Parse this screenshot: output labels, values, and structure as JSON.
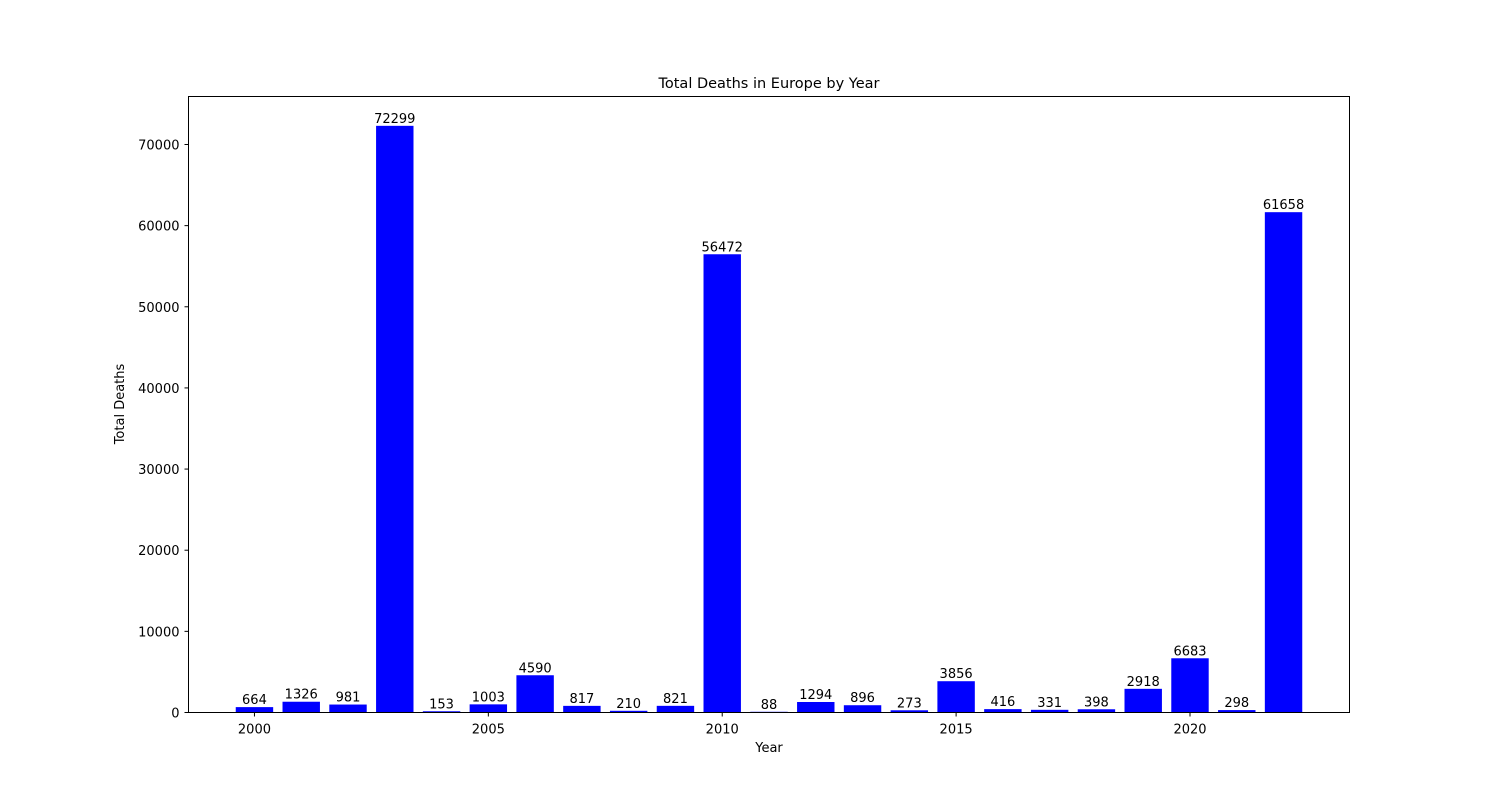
{
  "chart_data": {
    "type": "bar",
    "title": "Total Deaths in Europe by Year",
    "xlabel": "Year",
    "ylabel": "Total Deaths",
    "x": [
      2000,
      2001,
      2002,
      2003,
      2004,
      2005,
      2006,
      2007,
      2008,
      2009,
      2010,
      2011,
      2012,
      2013,
      2014,
      2015,
      2016,
      2017,
      2018,
      2019,
      2020,
      2021,
      2022
    ],
    "values": [
      664,
      1326,
      981,
      72299,
      153,
      1003,
      4590,
      817,
      210,
      821,
      56472,
      88,
      1294,
      896,
      273,
      3856,
      416,
      331,
      398,
      2918,
      6683,
      298,
      61658
    ],
    "data_labels": [
      "664",
      "1326",
      "981",
      "72299",
      "153",
      "1003",
      "4590",
      "817",
      "210",
      "821",
      "56472",
      "88",
      "1294",
      "896",
      "273",
      "3856",
      "416",
      "331",
      "398",
      "2918",
      "6683",
      "298",
      "61658"
    ],
    "xticks": [
      2000,
      2005,
      2010,
      2015,
      2020
    ],
    "xtick_labels": [
      "2000",
      "2005",
      "2010",
      "2015",
      "2020"
    ],
    "yticks": [
      0,
      10000,
      20000,
      30000,
      40000,
      50000,
      60000,
      70000
    ],
    "ytick_labels": [
      "0",
      "10000",
      "20000",
      "30000",
      "40000",
      "50000",
      "60000",
      "70000"
    ],
    "xlim": [
      1998.59,
      2023.41
    ],
    "ylim": [
      0,
      75914
    ],
    "bar_color": "#0000ff",
    "grid": false,
    "legend": "none"
  }
}
